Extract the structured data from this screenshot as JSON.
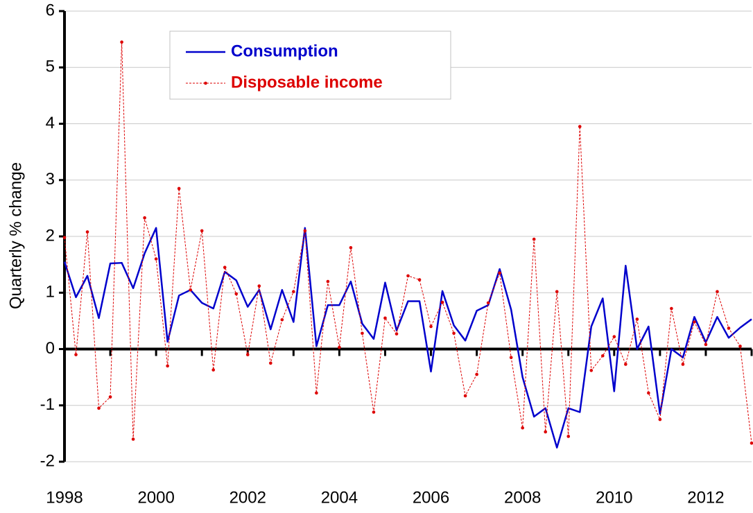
{
  "chart_data": {
    "type": "line",
    "ylabel": "Quarterly % change",
    "x": [
      1998,
      1998.25,
      1998.5,
      1998.75,
      1999,
      1999.25,
      1999.5,
      1999.75,
      2000,
      2000.25,
      2000.5,
      2000.75,
      2001,
      2001.25,
      2001.5,
      2001.75,
      2002,
      2002.25,
      2002.5,
      2002.75,
      2003,
      2003.25,
      2003.5,
      2003.75,
      2004,
      2004.25,
      2004.5,
      2004.75,
      2005,
      2005.25,
      2005.5,
      2005.75,
      2006,
      2006.25,
      2006.5,
      2006.75,
      2007,
      2007.25,
      2007.5,
      2007.75,
      2008,
      2008.25,
      2008.5,
      2008.75,
      2009,
      2009.25,
      2009.5,
      2009.75,
      2010,
      2010.25,
      2010.5,
      2010.75,
      2011,
      2011.25,
      2011.5,
      2011.75,
      2012,
      2012.25,
      2012.5,
      2012.75,
      2013
    ],
    "series": [
      {
        "name": "Consumption",
        "color": "#0000cc",
        "style": "solid",
        "values": [
          1.55,
          0.92,
          1.3,
          0.55,
          1.52,
          1.53,
          1.08,
          1.7,
          2.15,
          0.13,
          0.95,
          1.05,
          0.82,
          0.72,
          1.37,
          1.22,
          0.75,
          1.05,
          0.35,
          1.05,
          0.48,
          2.15,
          0.05,
          0.78,
          0.78,
          1.2,
          0.45,
          0.18,
          1.18,
          0.33,
          0.85,
          0.85,
          -0.4,
          1.03,
          0.42,
          0.15,
          0.68,
          0.78,
          1.42,
          0.7,
          -0.5,
          -1.2,
          -1.05,
          -1.75,
          -1.05,
          -1.12,
          0.4,
          0.9,
          -0.75,
          1.48,
          0.0,
          0.4,
          -1.15,
          0.0,
          -0.15,
          0.57,
          0.12,
          0.57,
          0.2,
          0.38,
          0.53
        ]
      },
      {
        "name": "Disposable income",
        "color": "#dd0000",
        "style": "dashed",
        "values": [
          1.98,
          -0.1,
          2.08,
          -1.05,
          -0.85,
          5.45,
          -1.6,
          2.33,
          1.6,
          -0.3,
          2.85,
          1.05,
          2.1,
          -0.37,
          1.45,
          0.98,
          -0.1,
          1.12,
          -0.25,
          0.52,
          1.02,
          2.1,
          -0.78,
          1.2,
          0.03,
          1.8,
          0.28,
          -1.12,
          0.55,
          0.27,
          1.3,
          1.23,
          0.4,
          0.83,
          0.28,
          -0.83,
          -0.45,
          0.82,
          1.35,
          -0.15,
          -1.4,
          1.95,
          -1.47,
          1.02,
          -1.55,
          3.95,
          -0.38,
          -0.12,
          0.22,
          -0.27,
          0.53,
          -0.78,
          -1.25,
          0.72,
          -0.27,
          0.48,
          0.08,
          1.02,
          0.37,
          0.05,
          -1.67
        ]
      }
    ],
    "xlim": [
      1998,
      2013
    ],
    "xticks": [
      1998,
      2000,
      2002,
      2004,
      2006,
      2008,
      2010,
      2012
    ],
    "xminor_ticks": [
      1999,
      2001,
      2003,
      2005,
      2007,
      2009,
      2011,
      2013
    ],
    "ylim": [
      -2,
      6
    ],
    "yticks": [
      -2,
      -1,
      0,
      1,
      2,
      3,
      4,
      5,
      6
    ],
    "grid": true
  }
}
